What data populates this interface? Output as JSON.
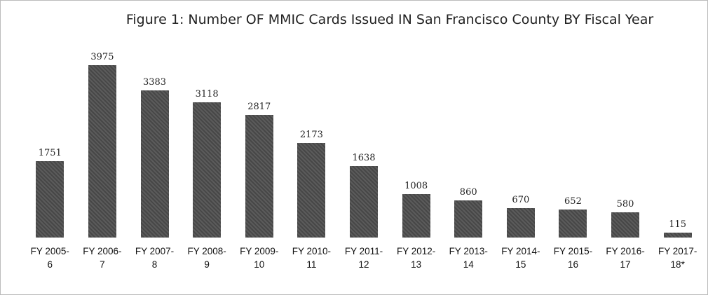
{
  "chart_data": {
    "type": "bar",
    "title": "Figure 1: Number OF MMIC Cards Issued IN San Francisco County BY Fiscal Year",
    "categories": [
      "FY 2005-6",
      "FY 2006-7",
      "FY 2007-8",
      "FY 2008-9",
      "FY 2009-10",
      "FY 2010-11",
      "FY 2011-12",
      "FY 2012-13",
      "FY 2013-14",
      "FY 2014-15",
      "FY 2015-16",
      "FY 2016-17",
      "FY 2017-18*"
    ],
    "values": [
      1751,
      3975,
      3383,
      3118,
      2817,
      2173,
      1638,
      1008,
      860,
      670,
      652,
      580,
      115
    ],
    "color": "#4d4d4d",
    "ylim": [
      0,
      4000
    ]
  }
}
